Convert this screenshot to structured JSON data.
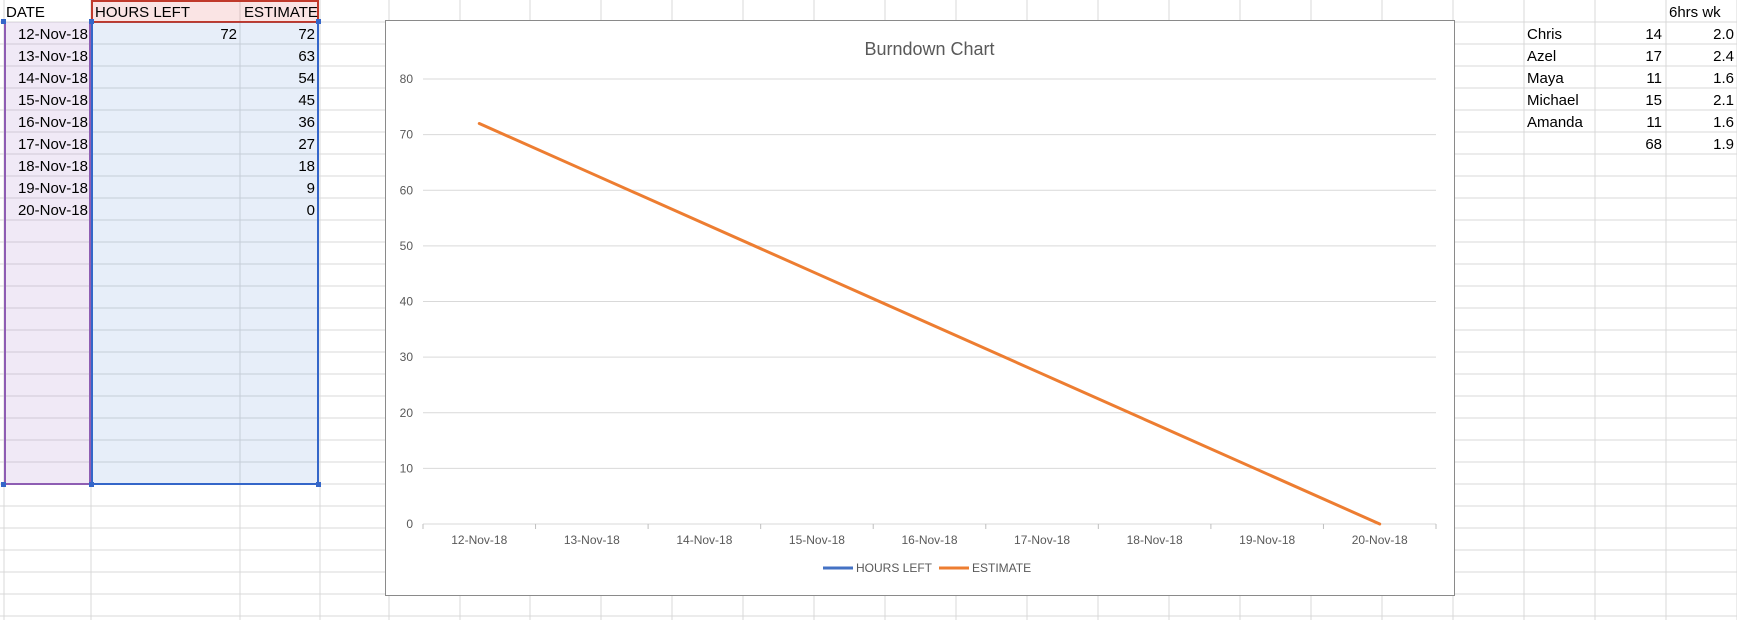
{
  "sheet": {
    "headers": {
      "date": "DATE",
      "hours_left": "HOURS LEFT",
      "estimate": "ESTIMATE"
    },
    "rows": [
      {
        "date": "12-Nov-18",
        "hours_left": "72",
        "estimate": "72"
      },
      {
        "date": "13-Nov-18",
        "hours_left": "",
        "estimate": "63"
      },
      {
        "date": "14-Nov-18",
        "hours_left": "",
        "estimate": "54"
      },
      {
        "date": "15-Nov-18",
        "hours_left": "",
        "estimate": "45"
      },
      {
        "date": "16-Nov-18",
        "hours_left": "",
        "estimate": "36"
      },
      {
        "date": "17-Nov-18",
        "hours_left": "",
        "estimate": "27"
      },
      {
        "date": "18-Nov-18",
        "hours_left": "",
        "estimate": "18"
      },
      {
        "date": "19-Nov-18",
        "hours_left": "",
        "estimate": "9"
      },
      {
        "date": "20-Nov-18",
        "hours_left": "",
        "estimate": "0"
      }
    ],
    "side_header": "6hrs wk",
    "team": [
      {
        "name": "Chris",
        "hours": "14",
        "rate": "2.0"
      },
      {
        "name": "Azel",
        "hours": "17",
        "rate": "2.4"
      },
      {
        "name": "Maya",
        "hours": "11",
        "rate": "1.6"
      },
      {
        "name": "Michael",
        "hours": "15",
        "rate": "2.1"
      },
      {
        "name": "Amanda",
        "hours": "11",
        "rate": "1.6"
      }
    ],
    "totals": {
      "hours": "68",
      "rate": "1.9"
    }
  },
  "chart_data": {
    "type": "line",
    "title": "Burndown Chart",
    "categories": [
      "12-Nov-18",
      "13-Nov-18",
      "14-Nov-18",
      "15-Nov-18",
      "16-Nov-18",
      "17-Nov-18",
      "18-Nov-18",
      "19-Nov-18",
      "20-Nov-18"
    ],
    "series": [
      {
        "name": "HOURS LEFT",
        "color": "#4472c4",
        "values": [
          72,
          null,
          null,
          null,
          null,
          null,
          null,
          null,
          null
        ]
      },
      {
        "name": "ESTIMATE",
        "color": "#ed7d31",
        "values": [
          72,
          63,
          54,
          45,
          36,
          27,
          18,
          9,
          0
        ]
      }
    ],
    "ylim": [
      0,
      80
    ],
    "yticks": [
      0,
      10,
      20,
      30,
      40,
      50,
      60,
      70,
      80
    ],
    "grid": true,
    "legend": "bottom"
  }
}
